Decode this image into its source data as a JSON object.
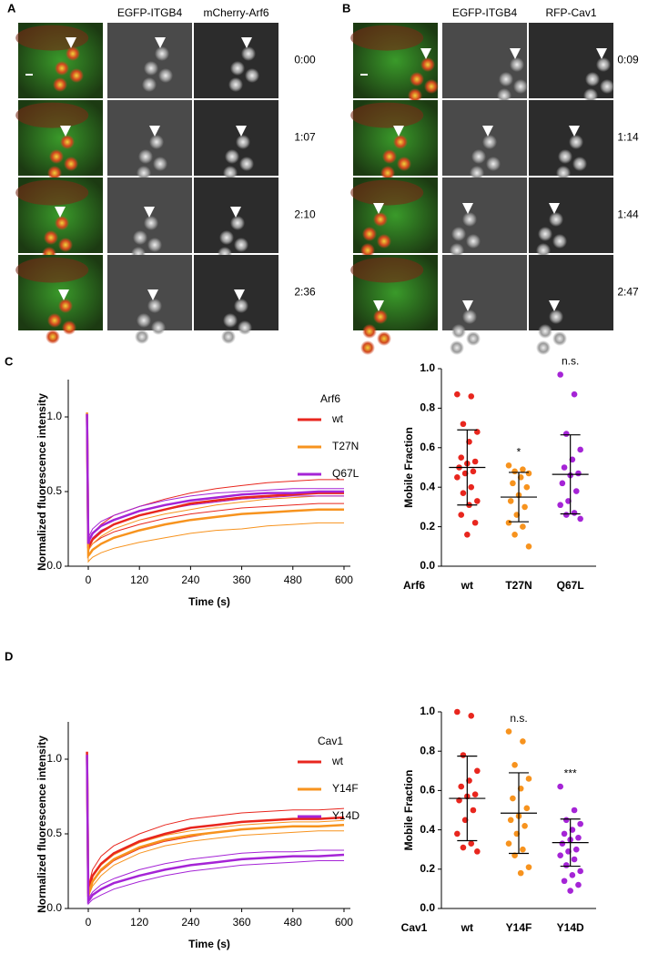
{
  "panels": {
    "A": {
      "label": "A",
      "channels": [
        "EGFP-ITGB4",
        "mCherry-Arf6"
      ],
      "times": [
        "0:00",
        "1:07",
        "2:10",
        "2:36"
      ]
    },
    "B": {
      "label": "B",
      "channels": [
        "EGFP-ITGB4",
        "RFP-Cav1"
      ],
      "times": [
        "0:09",
        "1:14",
        "1:44",
        "2:47"
      ]
    },
    "C": {
      "label": "C"
    },
    "D": {
      "label": "D"
    }
  },
  "chart_data": [
    {
      "type": "line",
      "xlabel": "Time (s)",
      "ylabel": "Normalized fluorescence intensity",
      "legend_title": "Arf6",
      "x": [
        -3,
        0,
        3,
        10,
        30,
        60,
        120,
        180,
        240,
        300,
        360,
        420,
        480,
        540,
        600
      ],
      "series": [
        {
          "name": "wt",
          "color": "#e8261e",
          "values": [
            1.02,
            0.12,
            0.14,
            0.18,
            0.23,
            0.28,
            0.34,
            0.38,
            0.42,
            0.44,
            0.46,
            0.47,
            0.48,
            0.49,
            0.49
          ]
        },
        {
          "name": "T27N",
          "color": "#f7931e",
          "values": [
            1.03,
            0.07,
            0.08,
            0.11,
            0.15,
            0.19,
            0.24,
            0.28,
            0.31,
            0.33,
            0.35,
            0.36,
            0.37,
            0.38,
            0.38
          ]
        },
        {
          "name": "Q67L",
          "color": "#a524d6",
          "values": [
            1.02,
            0.15,
            0.18,
            0.22,
            0.27,
            0.31,
            0.37,
            0.41,
            0.44,
            0.46,
            0.48,
            0.49,
            0.49,
            0.5,
            0.5
          ]
        }
      ],
      "traces": [
        {
          "color": "#e8261e",
          "values": [
            1.02,
            0.14,
            0.17,
            0.22,
            0.28,
            0.34,
            0.4,
            0.45,
            0.49,
            0.52,
            0.54,
            0.56,
            0.57,
            0.58,
            0.58
          ]
        },
        {
          "color": "#e8261e",
          "values": [
            1.0,
            0.1,
            0.12,
            0.15,
            0.19,
            0.23,
            0.28,
            0.32,
            0.35,
            0.37,
            0.39,
            0.4,
            0.41,
            0.42,
            0.42
          ]
        },
        {
          "color": "#f7931e",
          "values": [
            1.03,
            0.1,
            0.12,
            0.15,
            0.2,
            0.25,
            0.31,
            0.35,
            0.38,
            0.41,
            0.43,
            0.45,
            0.46,
            0.47,
            0.47
          ]
        },
        {
          "color": "#f7931e",
          "values": [
            1.0,
            0.03,
            0.04,
            0.06,
            0.09,
            0.12,
            0.16,
            0.19,
            0.22,
            0.24,
            0.25,
            0.27,
            0.28,
            0.29,
            0.29
          ]
        },
        {
          "color": "#a524d6",
          "values": [
            1.02,
            0.18,
            0.21,
            0.25,
            0.3,
            0.34,
            0.4,
            0.44,
            0.47,
            0.49,
            0.5,
            0.51,
            0.52,
            0.52,
            0.52
          ]
        },
        {
          "color": "#a524d6",
          "values": [
            1.0,
            0.12,
            0.15,
            0.19,
            0.24,
            0.28,
            0.34,
            0.38,
            0.41,
            0.43,
            0.45,
            0.46,
            0.47,
            0.47,
            0.47
          ]
        }
      ],
      "xlim": [
        -47,
        615
      ],
      "ylim": [
        0,
        1.25
      ],
      "xticks": [
        0,
        120,
        240,
        360,
        480,
        600
      ],
      "yticks": [
        {
          "value": 0,
          "label": "0.0"
        },
        {
          "value": 0.5,
          "label": "0.5"
        },
        {
          "value": 1,
          "label": "1.0"
        }
      ]
    },
    {
      "type": "strip",
      "ylabel": "Mobile Fraction",
      "axis_label": "Arf6",
      "categories": [
        "wt",
        "T27N",
        "Q67L"
      ],
      "annotations": [
        null,
        "*",
        "n.s."
      ],
      "series": [
        {
          "color": "#e8261e",
          "values": [
            0.87,
            0.86,
            0.72,
            0.68,
            0.63,
            0.55,
            0.53,
            0.52,
            0.5,
            0.48,
            0.47,
            0.45,
            0.4,
            0.37,
            0.33,
            0.31,
            0.26,
            0.22,
            0.16
          ]
        },
        {
          "color": "#f7931e",
          "values": [
            0.51,
            0.49,
            0.48,
            0.47,
            0.45,
            0.42,
            0.4,
            0.36,
            0.33,
            0.3,
            0.26,
            0.22,
            0.2,
            0.16,
            0.1
          ]
        },
        {
          "color": "#a524d6",
          "values": [
            0.97,
            0.87,
            0.67,
            0.59,
            0.54,
            0.5,
            0.47,
            0.46,
            0.42,
            0.38,
            0.33,
            0.31,
            0.27,
            0.26,
            0.24
          ]
        }
      ],
      "means": [
        0.5,
        0.35,
        0.465
      ],
      "sds": [
        0.19,
        0.125,
        0.2
      ],
      "ylim": [
        0,
        1
      ],
      "yticks": [
        {
          "value": 0,
          "label": "0.0"
        },
        {
          "value": 0.2,
          "label": "0.2"
        },
        {
          "value": 0.4,
          "label": "0.4"
        },
        {
          "value": 0.6,
          "label": "0.6"
        },
        {
          "value": 0.8,
          "label": "0.8"
        },
        {
          "value": 1,
          "label": "1.0"
        }
      ]
    },
    {
      "type": "line",
      "xlabel": "Time (s)",
      "ylabel": "Normalized fluorescence intensity",
      "legend_title": "Cav1",
      "x": [
        -3,
        0,
        3,
        10,
        30,
        60,
        120,
        180,
        240,
        300,
        360,
        420,
        480,
        540,
        600
      ],
      "series": [
        {
          "name": "wt",
          "color": "#e8261e",
          "values": [
            1.05,
            0.1,
            0.15,
            0.22,
            0.3,
            0.37,
            0.45,
            0.5,
            0.54,
            0.56,
            0.58,
            0.59,
            0.6,
            0.6,
            0.61
          ]
        },
        {
          "name": "Y14F",
          "color": "#f7931e",
          "values": [
            1.02,
            0.08,
            0.12,
            0.18,
            0.26,
            0.33,
            0.41,
            0.46,
            0.49,
            0.51,
            0.53,
            0.54,
            0.55,
            0.55,
            0.56
          ]
        },
        {
          "name": "Y14D",
          "color": "#a524d6",
          "values": [
            1.03,
            0.05,
            0.06,
            0.09,
            0.13,
            0.17,
            0.22,
            0.26,
            0.29,
            0.31,
            0.33,
            0.34,
            0.35,
            0.35,
            0.36
          ]
        }
      ],
      "traces": [
        {
          "color": "#e8261e",
          "values": [
            1.03,
            0.13,
            0.18,
            0.26,
            0.35,
            0.42,
            0.5,
            0.56,
            0.6,
            0.62,
            0.64,
            0.65,
            0.66,
            0.66,
            0.67
          ]
        },
        {
          "color": "#e8261e",
          "values": [
            1.0,
            0.08,
            0.12,
            0.18,
            0.25,
            0.32,
            0.4,
            0.45,
            0.48,
            0.51,
            0.53,
            0.54,
            0.55,
            0.55,
            0.56
          ]
        },
        {
          "color": "#f7931e",
          "values": [
            1.0,
            0.1,
            0.14,
            0.21,
            0.29,
            0.36,
            0.44,
            0.49,
            0.52,
            0.54,
            0.56,
            0.57,
            0.58,
            0.58,
            0.59
          ]
        },
        {
          "color": "#f7931e",
          "values": [
            1.0,
            0.06,
            0.1,
            0.15,
            0.22,
            0.29,
            0.37,
            0.42,
            0.45,
            0.47,
            0.49,
            0.5,
            0.51,
            0.52,
            0.52
          ]
        },
        {
          "color": "#a524d6",
          "values": [
            1.0,
            0.07,
            0.08,
            0.11,
            0.16,
            0.2,
            0.26,
            0.3,
            0.33,
            0.35,
            0.37,
            0.38,
            0.38,
            0.39,
            0.39
          ]
        },
        {
          "color": "#a524d6",
          "values": [
            1.0,
            0.03,
            0.04,
            0.06,
            0.09,
            0.13,
            0.18,
            0.22,
            0.25,
            0.27,
            0.29,
            0.3,
            0.31,
            0.32,
            0.32
          ]
        }
      ],
      "xlim": [
        -47,
        615
      ],
      "ylim": [
        0,
        1.25
      ],
      "xticks": [
        0,
        120,
        240,
        360,
        480,
        600
      ],
      "yticks": [
        {
          "value": 0,
          "label": "0.0"
        },
        {
          "value": 0.5,
          "label": "0.5"
        },
        {
          "value": 1,
          "label": "1.0"
        }
      ]
    },
    {
      "type": "strip",
      "ylabel": "Mobile Fraction",
      "axis_label": "Cav1",
      "categories": [
        "wt",
        "Y14F",
        "Y14D"
      ],
      "annotations": [
        null,
        "n.s.",
        "***"
      ],
      "series": [
        {
          "color": "#e8261e",
          "values": [
            1.0,
            0.98,
            0.78,
            0.7,
            0.65,
            0.62,
            0.58,
            0.57,
            0.55,
            0.5,
            0.45,
            0.38,
            0.33,
            0.31,
            0.29
          ]
        },
        {
          "color": "#f7931e",
          "values": [
            0.9,
            0.85,
            0.73,
            0.66,
            0.61,
            0.56,
            0.51,
            0.47,
            0.45,
            0.42,
            0.38,
            0.33,
            0.3,
            0.27,
            0.21,
            0.18
          ]
        },
        {
          "color": "#a524d6",
          "values": [
            0.62,
            0.5,
            0.45,
            0.43,
            0.4,
            0.38,
            0.36,
            0.35,
            0.33,
            0.3,
            0.29,
            0.27,
            0.25,
            0.22,
            0.19,
            0.17,
            0.14,
            0.12,
            0.09
          ]
        }
      ],
      "means": [
        0.56,
        0.485,
        0.335
      ],
      "sds": [
        0.215,
        0.205,
        0.12
      ],
      "ylim": [
        0,
        1
      ],
      "yticks": [
        {
          "value": 0,
          "label": "0.0"
        },
        {
          "value": 0.2,
          "label": "0.2"
        },
        {
          "value": 0.4,
          "label": "0.4"
        },
        {
          "value": 0.6,
          "label": "0.6"
        },
        {
          "value": 0.8,
          "label": "0.8"
        },
        {
          "value": 1,
          "label": "1.0"
        }
      ]
    }
  ]
}
